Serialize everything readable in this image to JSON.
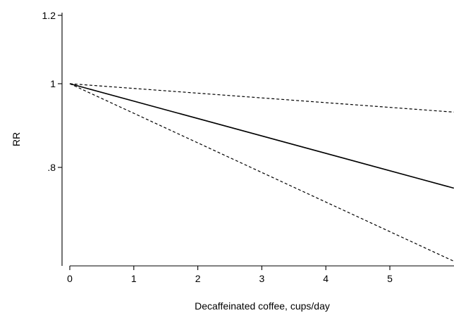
{
  "chart_data": {
    "type": "line",
    "title": "",
    "xlabel": "Decaffeinated coffee, cups/day",
    "ylabel": "RR",
    "xlim": [
      0,
      6
    ],
    "ylim": [
      0.6,
      1.2
    ],
    "x_ticks": [
      0,
      1,
      2,
      3,
      4,
      5
    ],
    "x_tick_labels": [
      "0",
      "1",
      "2",
      "3",
      "4",
      "5"
    ],
    "y_ticks": [
      0.8,
      1.0,
      1.2
    ],
    "y_tick_labels": [
      ".8",
      "1",
      "1.2"
    ],
    "y_scale": "log",
    "grid": false,
    "legend": "none",
    "series": [
      {
        "style": "solid",
        "x": [
          0,
          6
        ],
        "y": [
          1.0,
          0.757
        ]
      },
      {
        "style": "dashed",
        "x": [
          0,
          6
        ],
        "y": [
          1.0,
          0.927
        ]
      },
      {
        "style": "dashed",
        "x": [
          0,
          6
        ],
        "y": [
          1.0,
          0.623
        ]
      }
    ]
  }
}
